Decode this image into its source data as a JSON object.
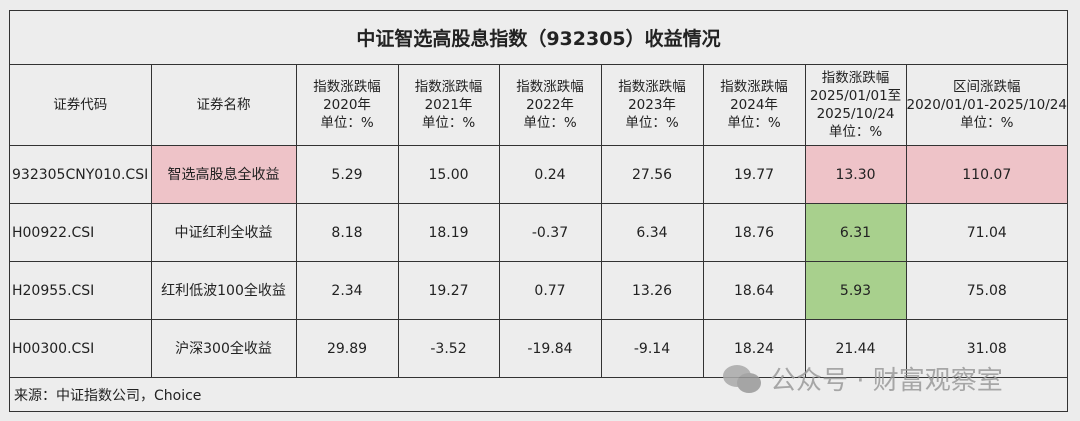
{
  "title": "中证智选高股息指数（932305）收益情况",
  "headers": [
    "证券代码",
    "证券名称",
    [
      "指数涨跌幅",
      "2020年",
      "单位：%"
    ],
    [
      "指数涨跌幅",
      "2021年",
      "单位：%"
    ],
    [
      "指数涨跌幅",
      "2022年",
      "单位：%"
    ],
    [
      "指数涨跌幅",
      "2023年",
      "单位：%"
    ],
    [
      "指数涨跌幅",
      "2024年",
      "单位：%"
    ],
    [
      "指数涨跌幅",
      "2025/01/01至",
      "2025/10/24",
      "单位：%"
    ],
    [
      "区间涨跌幅",
      "2020/01/01-2025/10/24",
      "单位：%"
    ]
  ],
  "rows": [
    {
      "code": "932305CNY010.CSI",
      "name": "智选高股息全收益",
      "values": [
        "5.29",
        "15.00",
        "0.24",
        "27.56",
        "19.77",
        "13.30",
        "110.07"
      ]
    },
    {
      "code": "H00922.CSI",
      "name": "中证红利全收益",
      "values": [
        "8.18",
        "18.19",
        "-0.37",
        "6.34",
        "18.76",
        "6.31",
        "71.04"
      ]
    },
    {
      "code": "H20955.CSI",
      "name": "红利低波100全收益",
      "values": [
        "2.34",
        "19.27",
        "0.77",
        "13.26",
        "18.64",
        "5.93",
        "75.08"
      ]
    },
    {
      "code": "H00300.CSI",
      "name": "沪深300全收益",
      "values": [
        "29.89",
        "-3.52",
        "-19.84",
        "-9.14",
        "18.24",
        "21.44",
        "31.08"
      ]
    }
  ],
  "source": "来源：中证指数公司，Choice",
  "watermark": "公众号 · 财富观察室",
  "colors": {
    "highlight_pink": "#eec3c8",
    "highlight_green": "#a8d08d"
  }
}
